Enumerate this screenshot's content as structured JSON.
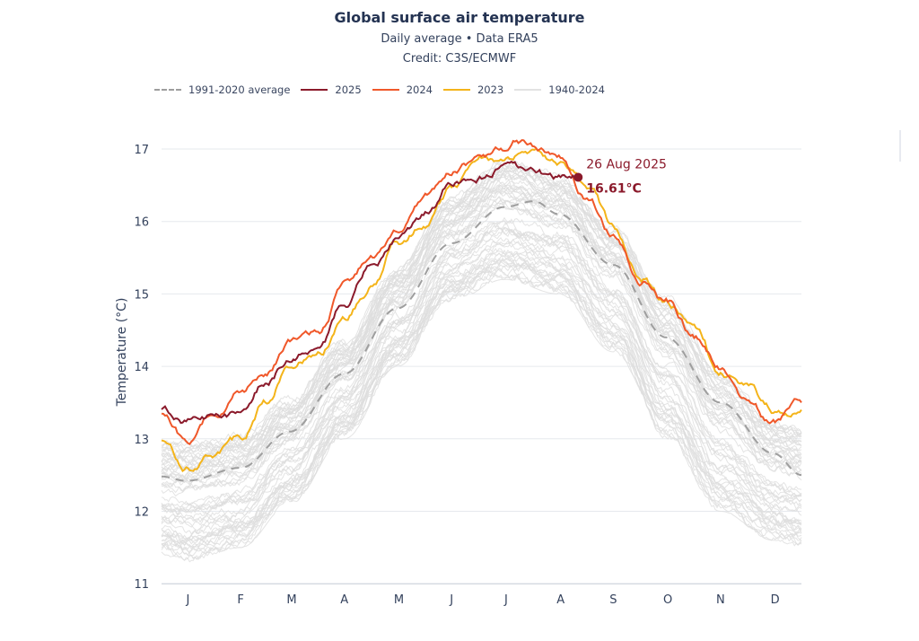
{
  "chart_data": {
    "type": "line",
    "title": "Global surface air temperature",
    "subtitle": "Daily average • Data ERA5",
    "credit": "Credit: C3S/ECMWF",
    "xlabel": "",
    "ylabel": "Temperature (°C)",
    "ylim": [
      11,
      17.2
    ],
    "yticks": [
      11,
      12,
      13,
      14,
      15,
      16,
      17
    ],
    "xticks": [
      "J",
      "F",
      "M",
      "A",
      "M",
      "J",
      "J",
      "A",
      "S",
      "O",
      "N",
      "D"
    ],
    "grid": true,
    "legend_position": "top-left",
    "x_unit": "day of year",
    "series": [
      {
        "name": "1991-2020 average",
        "color": "#9e9e9e",
        "style": "dashed",
        "x": [
          1,
          15,
          46,
          74,
          105,
          135,
          166,
          196,
          213,
          227,
          258,
          288,
          319,
          349,
          365
        ],
        "values": [
          12.48,
          12.42,
          12.6,
          13.1,
          13.9,
          14.8,
          15.7,
          16.2,
          16.28,
          16.1,
          15.4,
          14.4,
          13.5,
          12.8,
          12.5
        ]
      },
      {
        "name": "2025",
        "color": "#8b1a2b",
        "style": "solid",
        "x": [
          1,
          15,
          32,
          46,
          60,
          74,
          91,
          105,
          121,
          135,
          152,
          166,
          182,
          196,
          213,
          227,
          238
        ],
        "values": [
          13.4,
          13.25,
          13.3,
          13.35,
          13.8,
          14.1,
          14.3,
          14.9,
          15.4,
          15.75,
          16.1,
          16.55,
          16.6,
          16.75,
          16.65,
          16.6,
          16.61
        ]
      },
      {
        "name": "2024",
        "color": "#f0582a",
        "style": "solid",
        "x": [
          1,
          15,
          32,
          46,
          60,
          74,
          91,
          105,
          121,
          135,
          152,
          166,
          182,
          196,
          203,
          213,
          227,
          244,
          258,
          274,
          288,
          305,
          319,
          335,
          349,
          365
        ],
        "values": [
          13.35,
          13.0,
          13.4,
          13.65,
          13.9,
          14.3,
          14.5,
          15.1,
          15.5,
          15.9,
          16.35,
          16.7,
          16.85,
          17.0,
          17.15,
          17.0,
          16.85,
          16.3,
          15.8,
          15.2,
          14.9,
          14.4,
          14.0,
          13.5,
          13.2,
          13.5
        ]
      },
      {
        "name": "2023",
        "color": "#f4b41a",
        "style": "solid",
        "x": [
          1,
          15,
          32,
          46,
          60,
          74,
          91,
          105,
          121,
          135,
          152,
          166,
          182,
          196,
          213,
          227,
          244,
          258,
          274,
          288,
          305,
          319,
          335,
          349,
          365
        ],
        "values": [
          13.0,
          12.6,
          12.8,
          13.0,
          13.5,
          14.0,
          14.2,
          14.7,
          15.1,
          15.7,
          16.0,
          16.45,
          16.9,
          16.85,
          16.95,
          16.8,
          16.5,
          15.9,
          15.2,
          14.9,
          14.5,
          13.9,
          13.7,
          13.4,
          13.4
        ]
      },
      {
        "name": "1940-2024",
        "color": "#dddddd",
        "style": "band",
        "x": [
          1,
          15,
          46,
          74,
          105,
          135,
          166,
          196,
          227,
          258,
          288,
          319,
          349,
          365
        ],
        "low": [
          11.4,
          11.3,
          11.5,
          12.1,
          13.0,
          14.0,
          14.9,
          15.2,
          15.0,
          14.2,
          13.0,
          12.0,
          11.6,
          11.5
        ],
        "high": [
          13.0,
          13.0,
          13.1,
          13.6,
          14.4,
          15.4,
          16.4,
          16.9,
          16.7,
          16.0,
          15.0,
          14.0,
          13.3,
          13.2
        ]
      }
    ],
    "annotation": {
      "date": "26 Aug 2025",
      "value_label": "16.61°C",
      "x": 238,
      "y": 16.61,
      "color": "#8b1a2b"
    }
  }
}
